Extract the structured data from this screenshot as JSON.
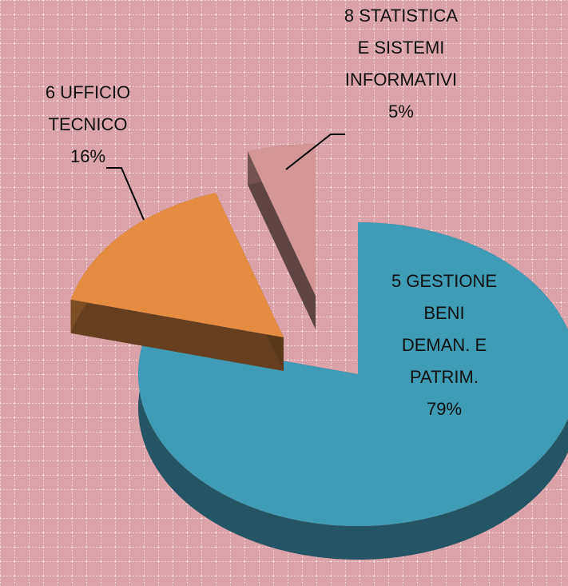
{
  "chart_data": {
    "type": "pie",
    "categories": [
      "5 GESTIONE BENI DEMAN. E PATRIM.",
      "6 UFFICIO TECNICO",
      "8 STATISTICA E SISTEMI INFORMATIVI"
    ],
    "values": [
      79,
      16,
      5
    ],
    "value_labels": [
      "79%",
      "16%",
      "5%"
    ],
    "colors": [
      "#3f9bb6",
      "#e48d42",
      "#d49696"
    ]
  }
}
